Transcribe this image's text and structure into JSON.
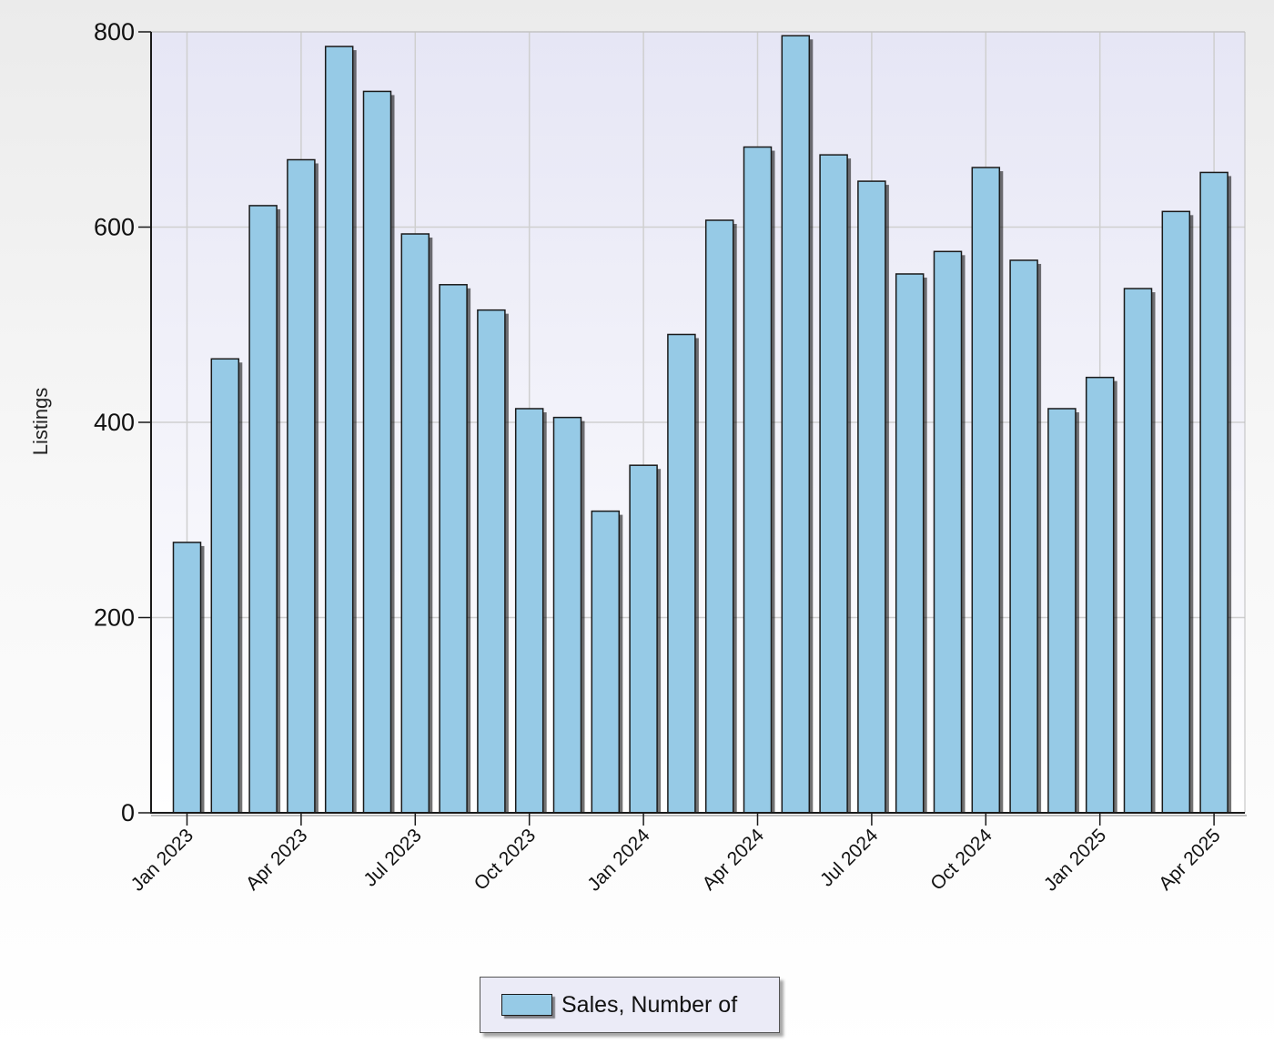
{
  "chart_data": {
    "type": "bar",
    "title": "",
    "xlabel": "",
    "ylabel": "Listings",
    "ylim": [
      0,
      800
    ],
    "yticks": [
      0,
      200,
      400,
      600,
      800
    ],
    "grid": true,
    "legend_position": "bottom-center",
    "colors": {
      "bar_fill": "#96cae6",
      "bar_border": "#1a1a1a",
      "plot_background_top": "#e6e6f5",
      "plot_background_bottom": "#ffffff",
      "grid": "#cfcfcf"
    },
    "categories": [
      "Jan 2023",
      "Feb 2023",
      "Mar 2023",
      "Apr 2023",
      "May 2023",
      "Jun 2023",
      "Jul 2023",
      "Aug 2023",
      "Sep 2023",
      "Oct 2023",
      "Nov 2023",
      "Dec 2023",
      "Jan 2024",
      "Feb 2024",
      "Mar 2024",
      "Apr 2024",
      "May 2024",
      "Jun 2024",
      "Jul 2024",
      "Aug 2024",
      "Sep 2024",
      "Oct 2024",
      "Nov 2024",
      "Dec 2024",
      "Jan 2025",
      "Feb 2025",
      "Mar 2025",
      "Apr 2025"
    ],
    "x_tick_labels": [
      "Jan 2023",
      "Apr 2023",
      "Jul 2023",
      "Oct 2023",
      "Jan 2024",
      "Apr 2024",
      "Jul 2024",
      "Oct 2024",
      "Jan 2025",
      "Apr 2025"
    ],
    "series": [
      {
        "name": "Sales, Number of",
        "values": [
          277,
          465,
          622,
          669,
          785,
          739,
          593,
          541,
          515,
          414,
          405,
          309,
          356,
          490,
          607,
          682,
          796,
          674,
          647,
          552,
          575,
          661,
          566,
          414,
          446,
          537,
          616,
          656
        ]
      }
    ]
  }
}
